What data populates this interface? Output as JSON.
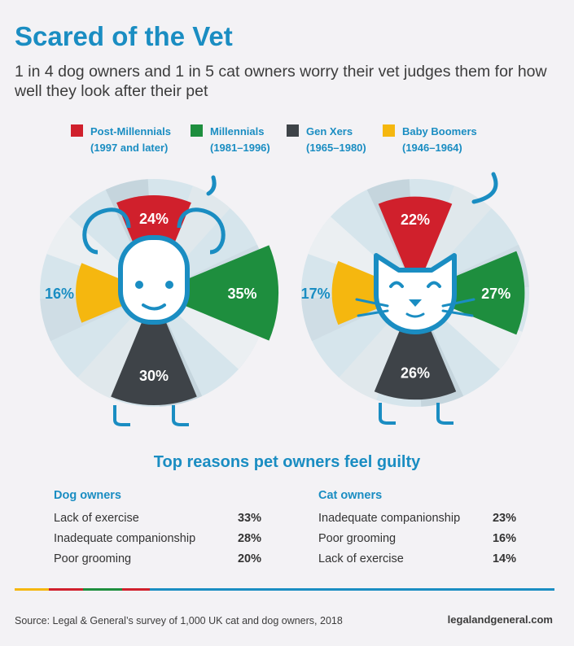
{
  "header": {
    "title": "Scared of the Vet",
    "subtitle": "1 in 4 dog owners and 1 in 5 cat owners worry their vet judges them for how well they look after their pet"
  },
  "legend": [
    {
      "name": "Post-Millennials",
      "range": "(1997 and later)",
      "color": "#d0202c"
    },
    {
      "name": "Millennials",
      "range": "(1981–1996)",
      "color": "#1e8e3e"
    },
    {
      "name": "Gen Xers",
      "range": "(1965–1980)",
      "color": "#3e4348"
    },
    {
      "name": "Baby Boomers",
      "range": "(1946–1964)",
      "color": "#f5b70f"
    }
  ],
  "chart_data": [
    {
      "type": "pie",
      "pet": "dog",
      "categories": [
        "Post-Millennials",
        "Millennials",
        "Gen Xers",
        "Baby Boomers"
      ],
      "values": [
        24,
        35,
        30,
        16
      ],
      "labels": [
        "24%",
        "35%",
        "30%",
        "16%"
      ]
    },
    {
      "type": "pie",
      "pet": "cat",
      "categories": [
        "Post-Millennials",
        "Millennials",
        "Gen Xers",
        "Baby Boomers"
      ],
      "values": [
        22,
        27,
        26,
        17
      ],
      "labels": [
        "22%",
        "27%",
        "26%",
        "17%"
      ]
    }
  ],
  "reasons": {
    "title": "Top reasons pet owners feel guilty",
    "dog": {
      "heading": "Dog owners",
      "items": [
        {
          "label": "Lack of exercise",
          "value": "33%"
        },
        {
          "label": "Inadequate companionship",
          "value": "28%"
        },
        {
          "label": "Poor grooming",
          "value": "20%"
        }
      ]
    },
    "cat": {
      "heading": "Cat owners",
      "items": [
        {
          "label": "Inadequate companionship",
          "value": "23%"
        },
        {
          "label": "Poor grooming",
          "value": "16%"
        },
        {
          "label": "Lack of exercise",
          "value": "14%"
        }
      ]
    }
  },
  "footer": {
    "source": "Source: Legal & General’s survey of 1,000 UK cat and dog owners, 2018",
    "brand": "legalandgeneral.com"
  },
  "colors": {
    "accent": "#1a8dc2",
    "text": "#3c3c3c",
    "background": "#f3f2f5",
    "rule_segments": [
      "#f5b70f",
      "#d0202c",
      "#1e8e3e",
      "#d0202c"
    ]
  }
}
